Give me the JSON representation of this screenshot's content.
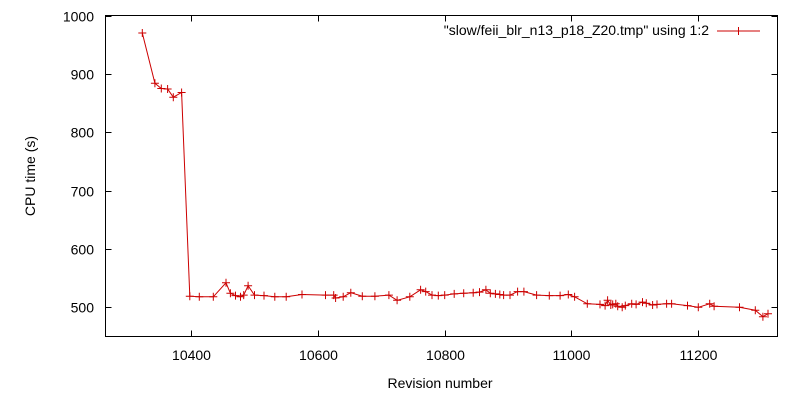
{
  "chart_data": {
    "type": "line",
    "title": "",
    "xlabel": "Revision number",
    "ylabel": "CPU time (s)",
    "xlim": [
      10265,
      11325
    ],
    "ylim": [
      450,
      1000
    ],
    "x_ticks": [
      10400,
      10600,
      10800,
      11000,
      11200
    ],
    "y_ticks": [
      500,
      600,
      700,
      800,
      900,
      1000
    ],
    "x_tick_labels": [
      "10400",
      "10600",
      "10800",
      "11000",
      "11200"
    ],
    "y_tick_labels": [
      "500",
      "600",
      "700",
      "800",
      "900",
      "1000"
    ],
    "grid": false,
    "legend_position": "top-right",
    "series": [
      {
        "name": "\"slow/feii_blr_n13_p18_Z20.tmp\" using 1:2",
        "color": "#cc0000",
        "marker": "plus",
        "points": [
          [
            10323,
            970
          ],
          [
            10343,
            884
          ],
          [
            10353,
            875
          ],
          [
            10363,
            874
          ],
          [
            10372,
            860
          ],
          [
            10385,
            868
          ],
          [
            10398,
            519
          ],
          [
            10413,
            518
          ],
          [
            10435,
            518
          ],
          [
            10455,
            542
          ],
          [
            10462,
            524
          ],
          [
            10470,
            520
          ],
          [
            10478,
            518
          ],
          [
            10483,
            521
          ],
          [
            10490,
            537
          ],
          [
            10500,
            521
          ],
          [
            10515,
            520
          ],
          [
            10532,
            518
          ],
          [
            10550,
            518
          ],
          [
            10575,
            522
          ],
          [
            10612,
            521
          ],
          [
            10625,
            521
          ],
          [
            10628,
            516
          ],
          [
            10640,
            518
          ],
          [
            10652,
            525
          ],
          [
            10670,
            519
          ],
          [
            10690,
            519
          ],
          [
            10712,
            521
          ],
          [
            10725,
            512
          ],
          [
            10745,
            518
          ],
          [
            10762,
            530
          ],
          [
            10770,
            527
          ],
          [
            10780,
            521
          ],
          [
            10790,
            520
          ],
          [
            10800,
            521
          ],
          [
            10815,
            523
          ],
          [
            10830,
            524
          ],
          [
            10845,
            525
          ],
          [
            10855,
            526
          ],
          [
            10865,
            530
          ],
          [
            10872,
            524
          ],
          [
            10880,
            523
          ],
          [
            10887,
            522
          ],
          [
            10893,
            521
          ],
          [
            10903,
            521
          ],
          [
            10915,
            527
          ],
          [
            10925,
            527
          ],
          [
            10945,
            521
          ],
          [
            10965,
            520
          ],
          [
            10982,
            520
          ],
          [
            10995,
            522
          ],
          [
            11005,
            518
          ],
          [
            11025,
            506
          ],
          [
            11045,
            505
          ],
          [
            11053,
            503
          ],
          [
            11057,
            512
          ],
          [
            11062,
            504
          ],
          [
            11065,
            505
          ],
          [
            11070,
            506
          ],
          [
            11073,
            502
          ],
          [
            11080,
            500
          ],
          [
            11085,
            503
          ],
          [
            11095,
            506
          ],
          [
            11102,
            505
          ],
          [
            11112,
            509
          ],
          [
            11118,
            507
          ],
          [
            11128,
            504
          ],
          [
            11135,
            505
          ],
          [
            11150,
            506
          ],
          [
            11158,
            506
          ],
          [
            11183,
            503
          ],
          [
            11200,
            500
          ],
          [
            11218,
            506
          ],
          [
            11225,
            502
          ],
          [
            11265,
            500
          ],
          [
            11290,
            495
          ],
          [
            11302,
            484
          ],
          [
            11310,
            489
          ]
        ]
      }
    ]
  }
}
